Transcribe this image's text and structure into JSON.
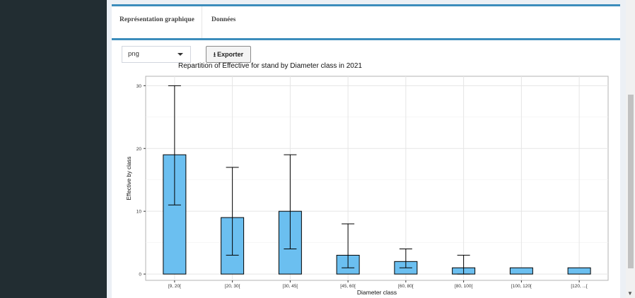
{
  "tabs": [
    {
      "label": "Représentation graphique",
      "active": true
    },
    {
      "label": "Données",
      "active": false
    }
  ],
  "format_select": {
    "value": "png"
  },
  "export_button": {
    "label": "Exporter",
    "icon": "download-icon"
  },
  "colors": {
    "bar_fill": "#6bbff0",
    "bar_stroke": "#000000",
    "accent": "#3c8dbc",
    "sidebar": "#222d32"
  },
  "chart_data": {
    "type": "bar",
    "title": "Repartition of Effective for stand by Diameter class in 2021",
    "xlabel": "Diameter class",
    "ylabel": "Effective by class",
    "categories": [
      "[9, 20[",
      "[20, 30[",
      "[30, 45[",
      "[45, 60[",
      "[60, 80[",
      "[80, 100[",
      "[100, 120[",
      "[120, ...["
    ],
    "values": [
      19,
      9,
      10,
      3,
      2,
      1,
      1,
      1
    ],
    "error_low": [
      11,
      3,
      4,
      1,
      1,
      0,
      null,
      null
    ],
    "error_high": [
      30,
      17,
      19,
      8,
      4,
      3,
      null,
      null
    ],
    "yticks": [
      0,
      10,
      20,
      30
    ],
    "ylim": [
      -1,
      31.5
    ],
    "grid": true
  }
}
